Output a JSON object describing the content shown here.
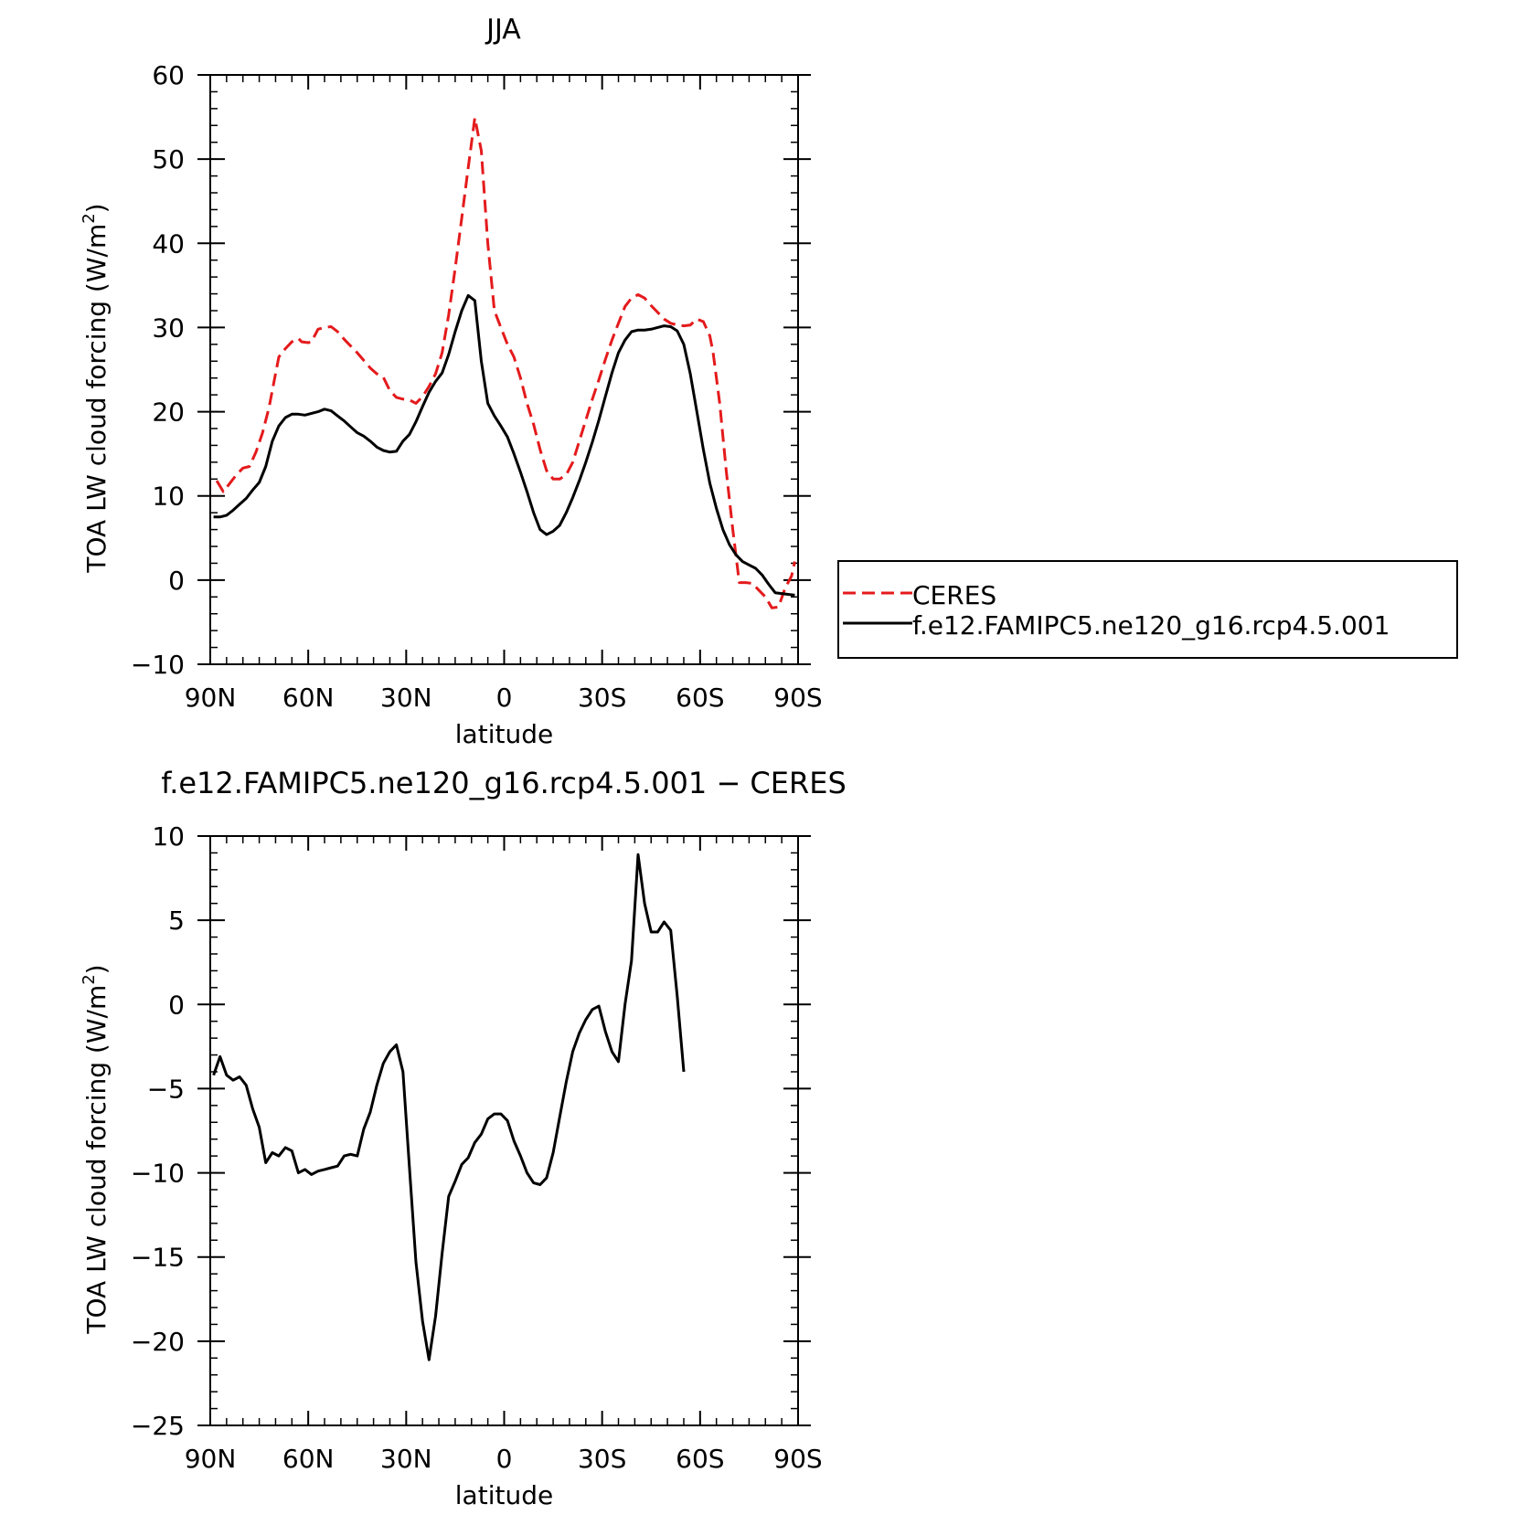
{
  "chart_data": [
    {
      "type": "line",
      "title": "JJA",
      "xlabel": "latitude",
      "ylabel": "TOA LW cloud forcing (W/m",
      "ylabel_sup": "2",
      "ylabel_close": ")",
      "xlim": [
        90,
        -90
      ],
      "ylim": [
        -10,
        60
      ],
      "x_ticks": [
        90,
        60,
        30,
        0,
        -30,
        -60,
        -90
      ],
      "x_tick_labels": [
        "90N",
        "60N",
        "30N",
        "0",
        "30S",
        "60S",
        "90S"
      ],
      "y_ticks": [
        -10,
        0,
        10,
        20,
        30,
        40,
        50,
        60
      ],
      "y_tick_labels": [
        "−10",
        "0",
        "10",
        "20",
        "30",
        "40",
        "50",
        "60"
      ],
      "legend": {
        "position": "right",
        "entries": [
          "CERES",
          "f.e12.FAMIPC5.ne120_g16.rcp4.5.001"
        ]
      },
      "series": [
        {
          "name": "CERES",
          "color": "#e41a1c",
          "dash": true,
          "points": [
            [
              88,
              11.8
            ],
            [
              86,
              10.5
            ],
            [
              84,
              11.5
            ],
            [
              82,
              12.5
            ],
            [
              80,
              13.3
            ],
            [
              78,
              13.5
            ],
            [
              76,
              15.2
            ],
            [
              74,
              17.5
            ],
            [
              72,
              20.5
            ],
            [
              70,
              24.5
            ],
            [
              69,
              26.5
            ],
            [
              67,
              27.5
            ],
            [
              65,
              28.3
            ],
            [
              63,
              28.7
            ],
            [
              62,
              28.3
            ],
            [
              60,
              28.2
            ],
            [
              59,
              28.3
            ],
            [
              57,
              29.8
            ],
            [
              55,
              30.0
            ],
            [
              53,
              30.1
            ],
            [
              51,
              29.5
            ],
            [
              49,
              28.6
            ],
            [
              47,
              27.8
            ],
            [
              45,
              27.0
            ],
            [
              43,
              26.1
            ],
            [
              41,
              25.2
            ],
            [
              39,
              24.5
            ],
            [
              37,
              24.1
            ],
            [
              35,
              22.5
            ],
            [
              33,
              21.7
            ],
            [
              31,
              21.5
            ],
            [
              29,
              21.4
            ],
            [
              27,
              21.0
            ],
            [
              25,
              21.8
            ],
            [
              23,
              23.0
            ],
            [
              21,
              24.5
            ],
            [
              19,
              27.0
            ],
            [
              17,
              31.5
            ],
            [
              15,
              37.0
            ],
            [
              13,
              43.0
            ],
            [
              11,
              49.0
            ],
            [
              9,
              54.9
            ],
            [
              7,
              51.0
            ],
            [
              5,
              40.0
            ],
            [
              3,
              32.0
            ],
            [
              1,
              30.0
            ],
            [
              -1,
              28.0
            ],
            [
              -3,
              26.5
            ],
            [
              -5,
              24.0
            ],
            [
              -7,
              21.0
            ],
            [
              -9,
              18.5
            ],
            [
              -11,
              15.5
            ],
            [
              -13,
              13.0
            ],
            [
              -15,
              12.0
            ],
            [
              -17,
              12.0
            ],
            [
              -19,
              12.5
            ],
            [
              -21,
              14.0
            ],
            [
              -23,
              16.5
            ],
            [
              -25,
              19.0
            ],
            [
              -27,
              21.5
            ],
            [
              -29,
              23.8
            ],
            [
              -31,
              26.2
            ],
            [
              -33,
              28.5
            ],
            [
              -35,
              30.5
            ],
            [
              -37,
              32.5
            ],
            [
              -39,
              33.5
            ],
            [
              -41,
              33.9
            ],
            [
              -43,
              33.5
            ],
            [
              -45,
              32.6
            ],
            [
              -47,
              31.8
            ],
            [
              -49,
              31.0
            ],
            [
              -51,
              30.5
            ],
            [
              -53,
              30.3
            ],
            [
              -55,
              30.2
            ],
            [
              -57,
              30.3
            ],
            [
              -59,
              31.0
            ],
            [
              -61,
              30.7
            ],
            [
              -63,
              29.0
            ],
            [
              -64,
              27.0
            ],
            [
              -66,
              21.0
            ],
            [
              -68,
              13.0
            ],
            [
              -70,
              6.0
            ],
            [
              -72,
              -0.3
            ],
            [
              -74,
              -0.3
            ],
            [
              -76,
              -0.4
            ],
            [
              -78,
              -1.2
            ],
            [
              -80,
              -2.0
            ],
            [
              -82,
              -3.3
            ],
            [
              -84,
              -3.2
            ],
            [
              -86,
              -1.0
            ],
            [
              -88,
              0.5
            ],
            [
              -89,
              2.2
            ]
          ]
        },
        {
          "name": "f.e12.FAMIPC5.ne120_g16.rcp4.5.001",
          "color": "#000000",
          "dash": false,
          "points": [
            [
              89,
              7.5
            ],
            [
              87,
              7.5
            ],
            [
              85,
              7.7
            ],
            [
              83,
              8.3
            ],
            [
              81,
              9.0
            ],
            [
              79,
              9.7
            ],
            [
              77,
              10.7
            ],
            [
              75,
              11.6
            ],
            [
              73,
              13.5
            ],
            [
              71,
              16.5
            ],
            [
              69,
              18.3
            ],
            [
              67,
              19.3
            ],
            [
              65,
              19.7
            ],
            [
              63,
              19.7
            ],
            [
              61,
              19.6
            ],
            [
              59,
              19.8
            ],
            [
              57,
              20.0
            ],
            [
              55,
              20.3
            ],
            [
              53,
              20.1
            ],
            [
              51,
              19.5
            ],
            [
              49,
              18.9
            ],
            [
              47,
              18.2
            ],
            [
              45,
              17.5
            ],
            [
              43,
              17.1
            ],
            [
              41,
              16.5
            ],
            [
              39,
              15.8
            ],
            [
              37,
              15.4
            ],
            [
              35,
              15.2
            ],
            [
              33,
              15.3
            ],
            [
              31,
              16.5
            ],
            [
              29,
              17.3
            ],
            [
              27,
              18.8
            ],
            [
              25,
              20.6
            ],
            [
              23,
              22.3
            ],
            [
              21,
              23.6
            ],
            [
              19,
              24.6
            ],
            [
              17,
              26.8
            ],
            [
              15,
              29.5
            ],
            [
              13,
              32.0
            ],
            [
              11,
              33.8
            ],
            [
              9,
              33.2
            ],
            [
              7,
              26.0
            ],
            [
              5,
              21.0
            ],
            [
              3,
              19.5
            ],
            [
              1,
              18.3
            ],
            [
              -1,
              17.0
            ],
            [
              -3,
              15.0
            ],
            [
              -5,
              12.8
            ],
            [
              -7,
              10.5
            ],
            [
              -9,
              8.0
            ],
            [
              -11,
              6.0
            ],
            [
              -13,
              5.4
            ],
            [
              -15,
              5.8
            ],
            [
              -17,
              6.5
            ],
            [
              -19,
              8.0
            ],
            [
              -21,
              9.8
            ],
            [
              -23,
              11.8
            ],
            [
              -25,
              14.0
            ],
            [
              -27,
              16.4
            ],
            [
              -29,
              19.0
            ],
            [
              -31,
              21.8
            ],
            [
              -33,
              24.6
            ],
            [
              -35,
              27.0
            ],
            [
              -37,
              28.5
            ],
            [
              -39,
              29.5
            ],
            [
              -41,
              29.7
            ],
            [
              -43,
              29.7
            ],
            [
              -45,
              29.8
            ],
            [
              -47,
              30.0
            ],
            [
              -49,
              30.2
            ],
            [
              -51,
              30.1
            ],
            [
              -53,
              29.6
            ],
            [
              -55,
              28.0
            ],
            [
              -57,
              24.5
            ],
            [
              -59,
              20.0
            ],
            [
              -61,
              15.5
            ],
            [
              -63,
              11.5
            ],
            [
              -65,
              8.5
            ],
            [
              -67,
              6.0
            ],
            [
              -69,
              4.2
            ],
            [
              -71,
              3.0
            ],
            [
              -73,
              2.2
            ],
            [
              -75,
              1.8
            ],
            [
              -77,
              1.4
            ],
            [
              -79,
              0.6
            ],
            [
              -81,
              -0.5
            ],
            [
              -83,
              -1.5
            ],
            [
              -89,
              -1.8
            ]
          ]
        }
      ]
    },
    {
      "type": "line",
      "title": "f.e12.FAMIPC5.ne120_g16.rcp4.5.001 − CERES",
      "xlabel": "latitude",
      "ylabel": "TOA LW cloud forcing (W/m",
      "ylabel_sup": "2",
      "ylabel_close": ")",
      "xlim": [
        90,
        -90
      ],
      "ylim": [
        -25,
        10
      ],
      "x_ticks": [
        90,
        60,
        30,
        0,
        -30,
        -60,
        -90
      ],
      "x_tick_labels": [
        "90N",
        "60N",
        "30N",
        "0",
        "30S",
        "60S",
        "90S"
      ],
      "y_ticks": [
        -25,
        -20,
        -15,
        -10,
        -5,
        0,
        5,
        10
      ],
      "y_tick_labels": [
        "−25",
        "−20",
        "−15",
        "−10",
        "−5",
        "0",
        "5",
        "10"
      ],
      "series": [
        {
          "color": "#000000",
          "dash": false,
          "points": [
            [
              89,
              -4.2
            ],
            [
              87,
              -3.1
            ],
            [
              85,
              -4.2
            ],
            [
              83,
              -4.5
            ],
            [
              81,
              -4.3
            ],
            [
              79,
              -4.8
            ],
            [
              77,
              -6.2
            ],
            [
              75,
              -7.3
            ],
            [
              73,
              -9.4
            ],
            [
              71,
              -8.8
            ],
            [
              69,
              -9.0
            ],
            [
              67,
              -8.5
            ],
            [
              65,
              -8.7
            ],
            [
              63,
              -10.0
            ],
            [
              61,
              -9.8
            ],
            [
              59,
              -10.1
            ],
            [
              57,
              -9.9
            ],
            [
              55,
              -9.8
            ],
            [
              53,
              -9.7
            ],
            [
              51,
              -9.6
            ],
            [
              49,
              -9.0
            ],
            [
              47,
              -8.9
            ],
            [
              45,
              -9.0
            ],
            [
              43,
              -7.4
            ],
            [
              41,
              -6.4
            ],
            [
              39,
              -4.8
            ],
            [
              37,
              -3.5
            ],
            [
              35,
              -2.8
            ],
            [
              33,
              -2.4
            ],
            [
              31,
              -4.0
            ],
            [
              29,
              -9.7
            ],
            [
              27,
              -15.3
            ],
            [
              25,
              -18.8
            ],
            [
              23,
              -21.1
            ],
            [
              21,
              -18.5
            ],
            [
              19,
              -14.8
            ],
            [
              17,
              -11.4
            ],
            [
              15,
              -10.5
            ],
            [
              13,
              -9.5
            ],
            [
              11,
              -9.1
            ],
            [
              9,
              -8.2
            ],
            [
              7,
              -7.7
            ],
            [
              5,
              -6.8
            ],
            [
              3,
              -6.5
            ],
            [
              1,
              -6.5
            ],
            [
              -1,
              -6.9
            ],
            [
              -3,
              -8.1
            ],
            [
              -5,
              -9.0
            ],
            [
              -7,
              -10.0
            ],
            [
              -9,
              -10.6
            ],
            [
              -11,
              -10.7
            ],
            [
              -13,
              -10.3
            ],
            [
              -15,
              -8.8
            ],
            [
              -17,
              -6.7
            ],
            [
              -19,
              -4.6
            ],
            [
              -21,
              -2.8
            ],
            [
              -23,
              -1.7
            ],
            [
              -25,
              -0.9
            ],
            [
              -27,
              -0.3
            ],
            [
              -29,
              -0.1
            ],
            [
              -31,
              -1.6
            ],
            [
              -33,
              -2.8
            ],
            [
              -35,
              -3.4
            ],
            [
              -37,
              0.0
            ],
            [
              -39,
              2.6
            ],
            [
              -41,
              8.9
            ],
            [
              -43,
              6.0
            ],
            [
              -45,
              4.3
            ],
            [
              -47,
              4.3
            ],
            [
              -49,
              4.9
            ],
            [
              -51,
              4.4
            ],
            [
              -53,
              0.5
            ],
            [
              -55,
              -4.0
            ]
          ]
        }
      ]
    }
  ]
}
